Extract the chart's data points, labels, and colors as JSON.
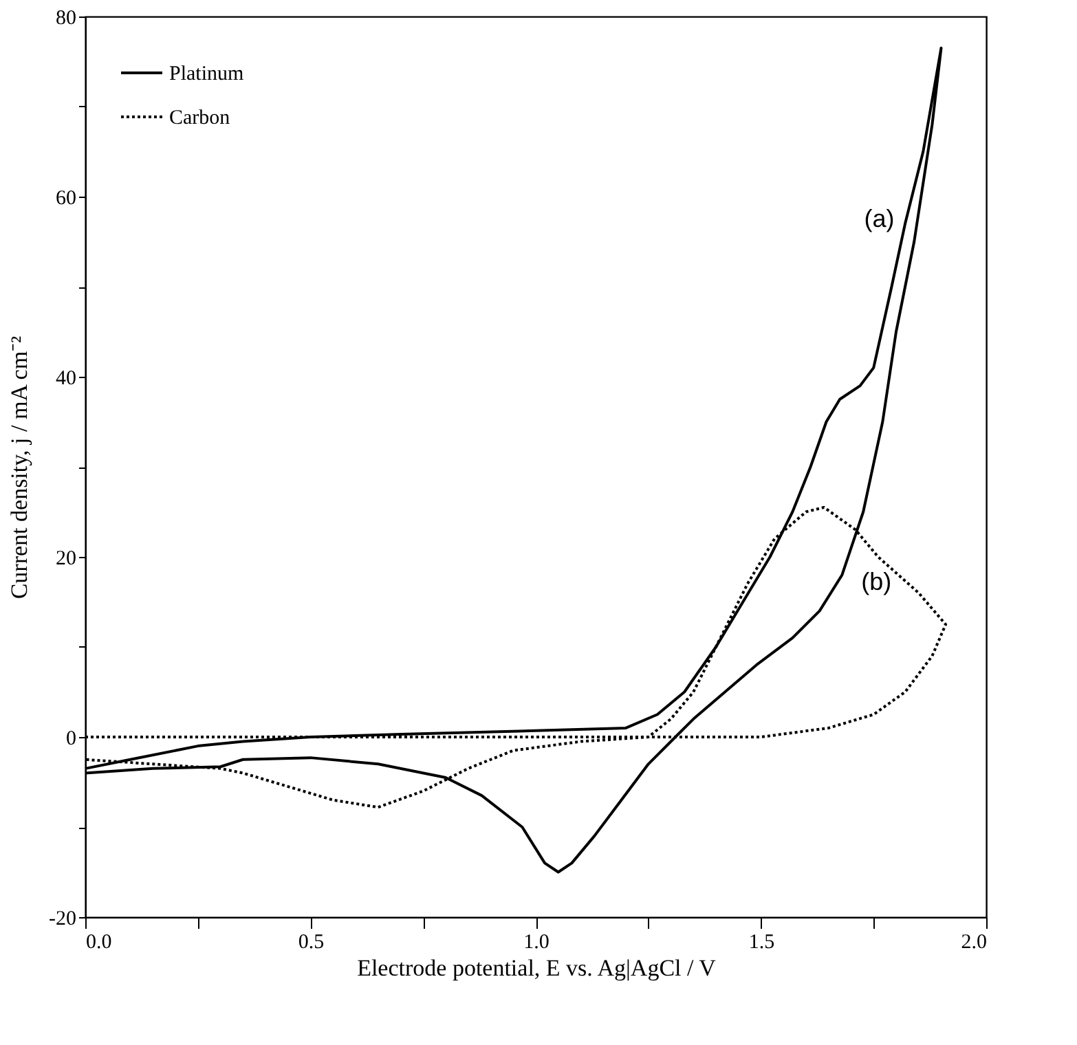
{
  "chart_data": {
    "type": "line",
    "xlabel": "Electrode potential, E vs. Ag|AgCl / V",
    "ylabel": "Current density, j / mA cm⁻²",
    "xlim": [
      0,
      2.0
    ],
    "ylim": [
      -20,
      80
    ],
    "xticks": [
      {
        "value": 0,
        "label": "0.0"
      },
      {
        "value": 0.25,
        "label": null
      },
      {
        "value": 0.5,
        "label": "0.5"
      },
      {
        "value": 0.75,
        "label": null
      },
      {
        "value": 1.0,
        "label": "1.0"
      },
      {
        "value": 1.25,
        "label": null
      },
      {
        "value": 1.5,
        "label": "1.5"
      },
      {
        "value": 1.75,
        "label": null
      },
      {
        "value": 2.0,
        "label": "2.0"
      }
    ],
    "yticks": [
      -20,
      {
        "value": -10,
        "label": null
      },
      0,
      {
        "value": 10,
        "label": null
      },
      20,
      {
        "value": 30,
        "label": null
      },
      40,
      {
        "value": 50,
        "label": null
      },
      60,
      {
        "value": 70,
        "label": null
      },
      80
    ],
    "grid": false,
    "legend": "top left",
    "marker": "none",
    "annotations": [
      "(a)",
      "(b)"
    ],
    "series": [
      {
        "name": "Platinum",
        "color": "#000000",
        "line_style": "solid",
        "x": [
          0,
          0.1,
          0.25,
          0.35,
          0.5,
          0.7,
          1.0,
          1.2,
          1.27,
          1.33,
          1.4,
          1.46,
          1.52,
          1.57,
          1.61,
          1.645,
          1.675,
          1.72,
          1.75,
          1.79,
          1.82,
          1.86,
          1.9,
          1.88,
          1.84,
          1.8,
          1.77,
          1.727,
          1.68,
          1.63,
          1.57,
          1.49,
          1.42,
          1.35,
          1.31,
          1.25,
          1.19,
          1.13,
          1.08,
          1.05,
          1.02,
          0.97,
          0.88,
          0.8,
          0.65,
          0.5,
          0.35,
          0.3,
          0.15,
          0
        ],
        "values": [
          -3.5,
          -2.5,
          -1,
          -0.5,
          0,
          0.3,
          0.7,
          1,
          2.5,
          5,
          10,
          15,
          20,
          25,
          30,
          35,
          37.5,
          39,
          41,
          50,
          57,
          65,
          76.5,
          68,
          55,
          45,
          35,
          25,
          18,
          14,
          11,
          8,
          5,
          2,
          0,
          -3,
          -7,
          -11,
          -14,
          -15,
          -14,
          -10,
          -6.5,
          -4.5,
          -3,
          -2.3,
          -2.5,
          -3.3,
          -3.5,
          -4
        ]
      },
      {
        "name": "Carbon",
        "color": "#000000",
        "line_style": "dotted",
        "x": [
          0,
          0.5,
          1.0,
          1.3,
          1.5,
          1.65,
          1.75,
          1.82,
          1.88,
          1.91,
          1.85,
          1.76,
          1.71,
          1.64,
          1.6,
          1.53,
          1.47,
          1.4,
          1.35,
          1.3,
          1.25,
          1.1,
          0.95,
          0.85,
          0.75,
          0.65,
          0.55,
          0.45,
          0.35,
          0.3,
          0.15,
          0
        ],
        "values": [
          0,
          0,
          0,
          0,
          0,
          1,
          2.5,
          5,
          9,
          12.5,
          16,
          20,
          23,
          25.5,
          25,
          22,
          17,
          10,
          5,
          2,
          0,
          -0.5,
          -1.5,
          -3.5,
          -6,
          -7.8,
          -7,
          -5.5,
          -4,
          -3.5,
          -3,
          -2.5
        ]
      }
    ]
  }
}
